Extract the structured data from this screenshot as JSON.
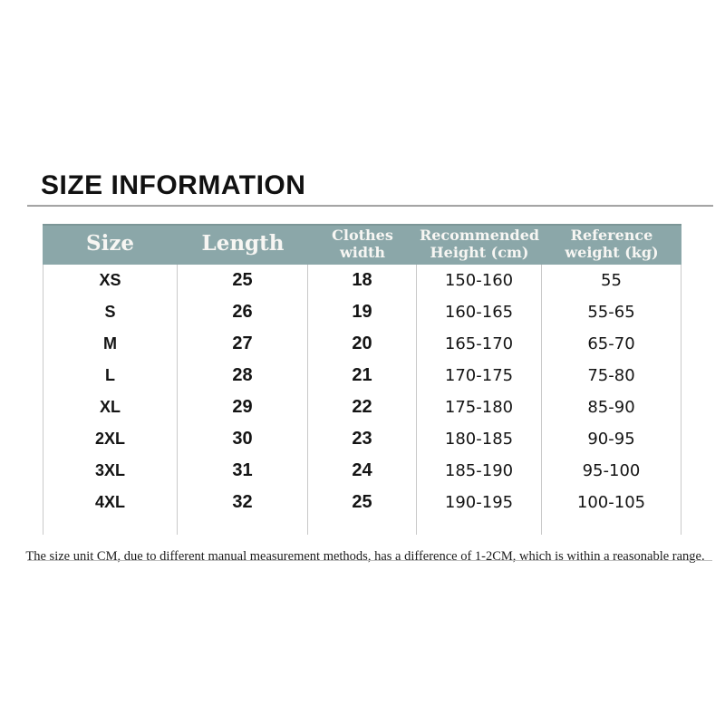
{
  "page": {
    "title": "SIZE INFORMATION",
    "note": "The size unit CM, due to different manual measurement methods, has a difference of 1-2CM, which is within a reasonable range."
  },
  "colors": {
    "header_bg": "#8ba7a9",
    "header_text": "#f7f6f3",
    "divider": "#c9c9c9",
    "title_rule": "#9a9a9a"
  },
  "table": {
    "columns": [
      {
        "label": "Size",
        "size": "big"
      },
      {
        "label": "Length",
        "size": "big"
      },
      {
        "label": "Clothes\nwidth",
        "size": "small"
      },
      {
        "label": "Recommended\nHeight (cm)",
        "size": "small"
      },
      {
        "label": "Reference\nweight (kg)",
        "size": "small"
      }
    ],
    "rows": [
      [
        "XS",
        "25",
        "18",
        "150-160",
        "55"
      ],
      [
        "S",
        "26",
        "19",
        "160-165",
        "55-65"
      ],
      [
        "M",
        "27",
        "20",
        "165-170",
        "65-70"
      ],
      [
        "L",
        "28",
        "21",
        "170-175",
        "75-80"
      ],
      [
        "XL",
        "29",
        "22",
        "175-180",
        "85-90"
      ],
      [
        "2XL",
        "30",
        "23",
        "180-185",
        "90-95"
      ],
      [
        "3XL",
        "31",
        "24",
        "185-190",
        "95-100"
      ],
      [
        "4XL",
        "32",
        "25",
        "190-195",
        "100-105"
      ]
    ]
  }
}
